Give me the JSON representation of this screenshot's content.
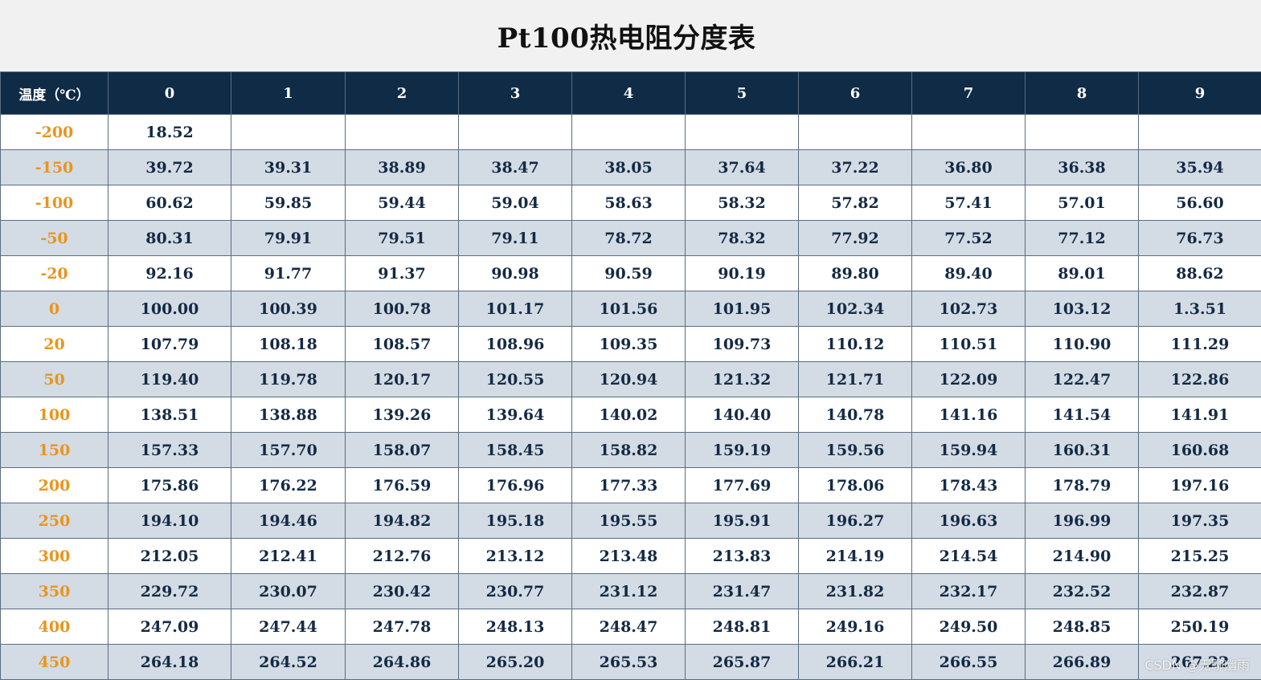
{
  "title": "Pt100热电阻分度表",
  "table": {
    "headers": [
      "温度（℃）",
      "0",
      "1",
      "2",
      "3",
      "4",
      "5",
      "6",
      "7",
      "8",
      "9"
    ],
    "rows": [
      {
        "temp": "-200",
        "values": [
          "18.52",
          "",
          "",
          "",
          "",
          "",
          "",
          "",
          "",
          ""
        ]
      },
      {
        "temp": "-150",
        "values": [
          "39.72",
          "39.31",
          "38.89",
          "38.47",
          "38.05",
          "37.64",
          "37.22",
          "36.80",
          "36.38",
          "35.94"
        ]
      },
      {
        "temp": "-100",
        "values": [
          "60.62",
          "59.85",
          "59.44",
          "59.04",
          "58.63",
          "58.32",
          "57.82",
          "57.41",
          "57.01",
          "56.60"
        ]
      },
      {
        "temp": "-50",
        "values": [
          "80.31",
          "79.91",
          "79.51",
          "79.11",
          "78.72",
          "78.32",
          "77.92",
          "77.52",
          "77.12",
          "76.73"
        ]
      },
      {
        "temp": "-20",
        "values": [
          "92.16",
          "91.77",
          "91.37",
          "90.98",
          "90.59",
          "90.19",
          "89.80",
          "89.40",
          "89.01",
          "88.62"
        ]
      },
      {
        "temp": "0",
        "values": [
          "100.00",
          "100.39",
          "100.78",
          "101.17",
          "101.56",
          "101.95",
          "102.34",
          "102.73",
          "103.12",
          "1.3.51"
        ]
      },
      {
        "temp": "20",
        "values": [
          "107.79",
          "108.18",
          "108.57",
          "108.96",
          "109.35",
          "109.73",
          "110.12",
          "110.51",
          "110.90",
          "111.29"
        ]
      },
      {
        "temp": "50",
        "values": [
          "119.40",
          "119.78",
          "120.17",
          "120.55",
          "120.94",
          "121.32",
          "121.71",
          "122.09",
          "122.47",
          "122.86"
        ]
      },
      {
        "temp": "100",
        "values": [
          "138.51",
          "138.88",
          "139.26",
          "139.64",
          "140.02",
          "140.40",
          "140.78",
          "141.16",
          "141.54",
          "141.91"
        ]
      },
      {
        "temp": "150",
        "values": [
          "157.33",
          "157.70",
          "158.07",
          "158.45",
          "158.82",
          "159.19",
          "159.56",
          "159.94",
          "160.31",
          "160.68"
        ]
      },
      {
        "temp": "200",
        "values": [
          "175.86",
          "176.22",
          "176.59",
          "176.96",
          "177.33",
          "177.69",
          "178.06",
          "178.43",
          "178.79",
          "197.16"
        ]
      },
      {
        "temp": "250",
        "values": [
          "194.10",
          "194.46",
          "194.82",
          "195.18",
          "195.55",
          "195.91",
          "196.27",
          "196.63",
          "196.99",
          "197.35"
        ]
      },
      {
        "temp": "300",
        "values": [
          "212.05",
          "212.41",
          "212.76",
          "213.12",
          "213.48",
          "213.83",
          "214.19",
          "214.54",
          "214.90",
          "215.25"
        ]
      },
      {
        "temp": "350",
        "values": [
          "229.72",
          "230.07",
          "230.42",
          "230.77",
          "231.12",
          "231.47",
          "231.82",
          "232.17",
          "232.52",
          "232.87"
        ]
      },
      {
        "temp": "400",
        "values": [
          "247.09",
          "247.44",
          "247.78",
          "248.13",
          "248.47",
          "248.81",
          "249.16",
          "249.50",
          "248.85",
          "250.19"
        ]
      },
      {
        "temp": "450",
        "values": [
          "264.18",
          "264.52",
          "264.86",
          "265.20",
          "265.53",
          "265.87",
          "266.21",
          "266.55",
          "266.89",
          "267.22"
        ]
      }
    ]
  },
  "watermark": "CSDN @无聊幽雨",
  "colors": {
    "header_bg": "#0f2b46",
    "header_text": "#ffffff",
    "temp_text": "#e8951e",
    "value_text": "#142a44",
    "row_even": "#ffffff",
    "row_odd": "#d3dbe4"
  }
}
